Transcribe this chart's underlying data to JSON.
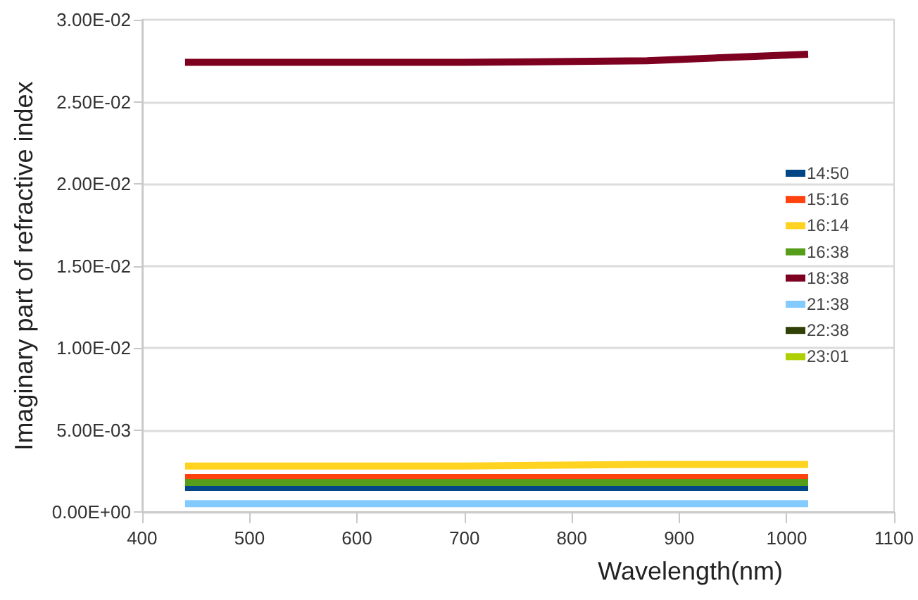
{
  "chart_data": {
    "type": "line",
    "xlabel": "Wavelength(nm)",
    "ylabel": "Imaginary part of refractive index",
    "x": [
      440,
      550,
      700,
      870,
      1020
    ],
    "series": [
      {
        "name": "14:50",
        "color": "#004586",
        "values": [
          0.0015,
          0.0015,
          0.0015,
          0.0015,
          0.0015
        ]
      },
      {
        "name": "15:16",
        "color": "#ff420e",
        "values": [
          0.0021,
          0.0021,
          0.0021,
          0.0021,
          0.0021
        ]
      },
      {
        "name": "16:14",
        "color": "#ffd320",
        "values": [
          0.0028,
          0.0028,
          0.0028,
          0.0029,
          0.0029
        ]
      },
      {
        "name": "16:38",
        "color": "#579d1c",
        "values": [
          0.0018,
          0.0018,
          0.0018,
          0.0018,
          0.0018
        ]
      },
      {
        "name": "18:38",
        "color": "#7e0021",
        "values": [
          0.0274,
          0.0274,
          0.0274,
          0.0275,
          0.0279
        ]
      },
      {
        "name": "21:38",
        "color": "#83caff",
        "values": [
          0.0005,
          0.0005,
          0.0005,
          0.0005,
          0.0005
        ]
      },
      {
        "name": "22:38",
        "color": "#314004",
        "values": [
          null,
          null,
          null,
          null,
          null
        ]
      },
      {
        "name": "23:01",
        "color": "#aecf00",
        "values": [
          null,
          null,
          null,
          null,
          null
        ]
      }
    ],
    "xlim": [
      400,
      1100
    ],
    "xticks": [
      400,
      500,
      600,
      700,
      800,
      900,
      1000,
      1100
    ],
    "ylim": [
      0,
      0.03
    ],
    "yticks": [
      {
        "value": 0,
        "label": "0.00E+00"
      },
      {
        "value": 0.005,
        "label": "5.00E-03"
      },
      {
        "value": 0.01,
        "label": "1.00E-02"
      },
      {
        "value": 0.015,
        "label": "1.50E-02"
      },
      {
        "value": 0.02,
        "label": "2.00E-02"
      },
      {
        "value": 0.025,
        "label": "2.50E-02"
      },
      {
        "value": 0.03,
        "label": "3.00E-02"
      }
    ],
    "grid": "y",
    "legend": "right",
    "marker": "none"
  }
}
